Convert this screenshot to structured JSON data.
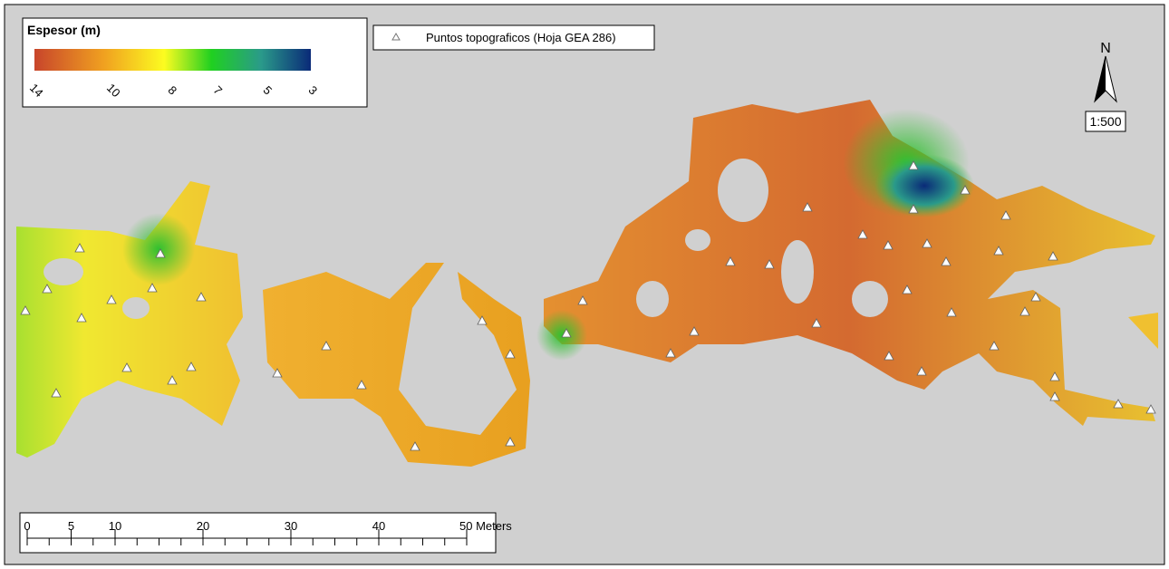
{
  "legend": {
    "title": "Espesor (m)",
    "colorbar_labels": [
      14,
      10,
      8,
      7,
      5,
      3
    ]
  },
  "points_legend": "Puntos topograficos (Hoja GEA 286)",
  "north": "N",
  "scale_text": "1:500",
  "scale_bar": {
    "range": [
      0,
      50
    ],
    "ticks": [
      0,
      5,
      10,
      20,
      30,
      40,
      {
        "value": 50,
        "label": "50 Meters"
      }
    ]
  }
}
